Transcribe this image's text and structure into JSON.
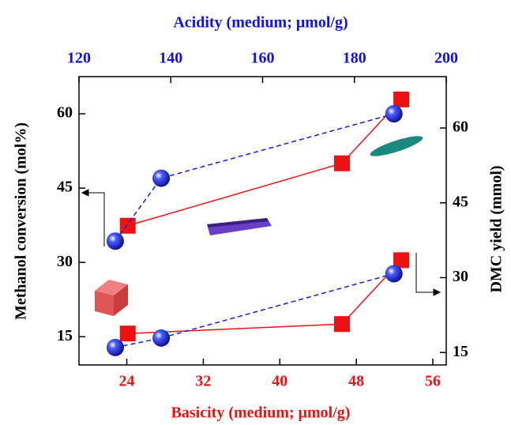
{
  "chart_data": {
    "type": "line",
    "title": "Acidity (medium; μmol/g)",
    "xlabel": "Basicity (medium; μmol/g)",
    "ylabel": "Methanol conversion (mol%)",
    "y2label": "DMC yield (mmol)",
    "xlim": [
      19,
      57.4
    ],
    "xticks": [
      24,
      32,
      40,
      48,
      56
    ],
    "x2lim": [
      120,
      200
    ],
    "x2ticks": [
      120,
      140,
      160,
      180,
      200
    ],
    "ylim": [
      9.3,
      67.5
    ],
    "yticks": [
      15,
      30,
      45,
      60
    ],
    "y2lim": [
      12.5,
      70.3
    ],
    "y2ticks": [
      15,
      30,
      45,
      60
    ],
    "x_color": "#ee1111",
    "x2_color": "#1111ee",
    "series": [
      {
        "color": "#ee1111",
        "marker": "square",
        "dash": false,
        "xaxis": "x",
        "axis": "y",
        "x": [
          24.1,
          46.5,
          52.7
        ],
        "values": [
          37.4,
          50.0,
          62.9
        ]
      },
      {
        "color": "#ee1111",
        "marker": "square",
        "dash": false,
        "xaxis": "x",
        "axis": "y2",
        "x": [
          24.1,
          46.5,
          52.7
        ],
        "values": [
          18.8,
          20.7,
          33.5
        ]
      },
      {
        "color": "#1a1aee",
        "marker": "sphere",
        "dash": true,
        "xaxis": "x2",
        "axis": "y",
        "x": [
          127.9,
          137.9,
          188.6
        ],
        "values": [
          34.3,
          47.0,
          60.0
        ]
      },
      {
        "color": "#1a1aee",
        "marker": "sphere",
        "dash": true,
        "xaxis": "x2",
        "axis": "y2",
        "x": [
          127.9,
          137.9,
          188.6
        ],
        "values": [
          16.0,
          17.9,
          30.8
        ]
      }
    ]
  }
}
